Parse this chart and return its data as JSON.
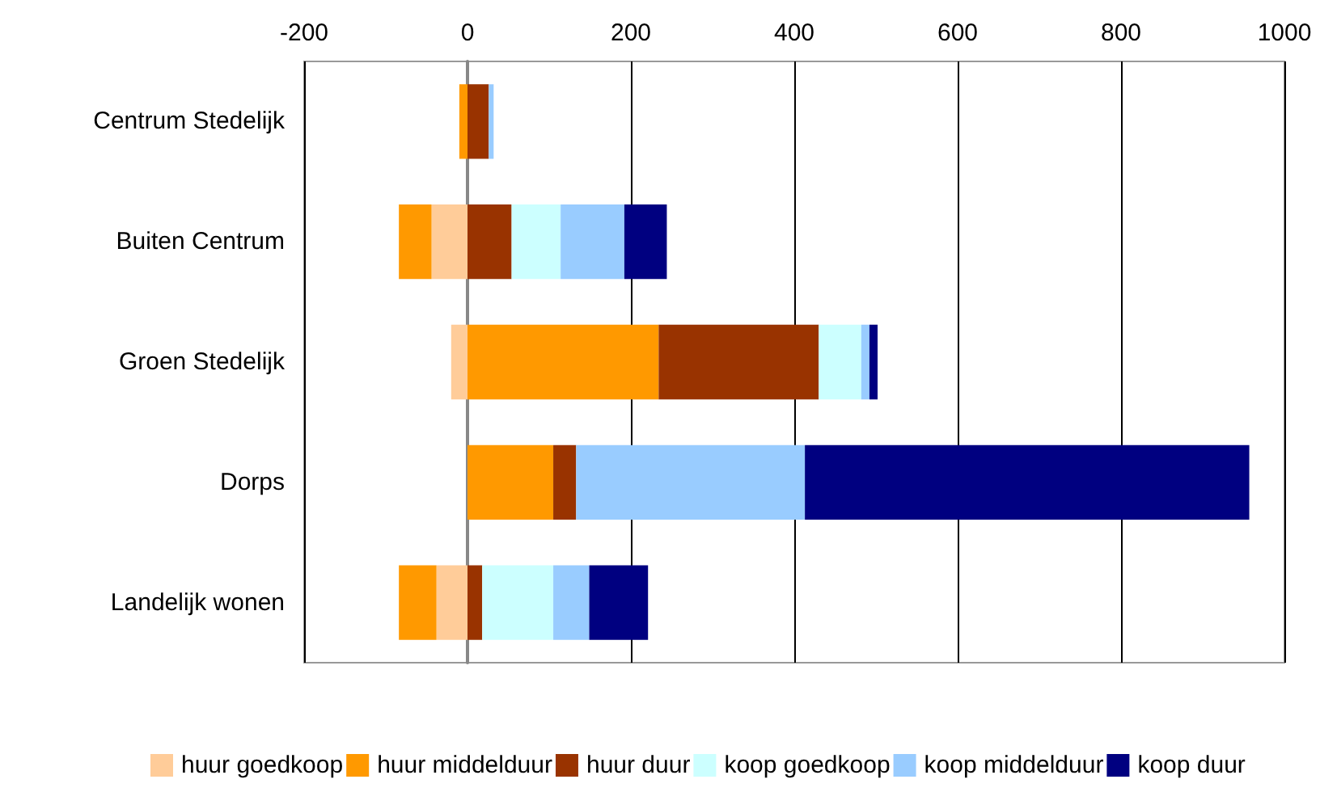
{
  "chart_data": {
    "type": "bar",
    "orientation": "horizontal",
    "stacked": true,
    "categories": [
      "Centrum Stedelijk",
      "Buiten Centrum",
      "Groen Stedelijk",
      "Dorps",
      "Landelijk wonen"
    ],
    "series": [
      {
        "name": "huur goedkoop",
        "color": "#ffcc99",
        "values": [
          0,
          -44,
          -20,
          0,
          -38
        ]
      },
      {
        "name": "huur middelduur",
        "color": "#ff9900",
        "values": [
          -10,
          -40,
          234,
          105,
          -46
        ]
      },
      {
        "name": "huur duur",
        "color": "#993300",
        "values": [
          26,
          54,
          196,
          28,
          18
        ]
      },
      {
        "name": "koop goedkoop",
        "color": "#ccffff",
        "values": [
          0,
          60,
          52,
          0,
          87
        ]
      },
      {
        "name": "koop middelduur",
        "color": "#99ccff",
        "values": [
          6,
          78,
          10,
          280,
          44
        ]
      },
      {
        "name": "koop duur",
        "color": "#000080",
        "values": [
          0,
          52,
          10,
          544,
          72
        ]
      }
    ],
    "xlim": [
      -200,
      1000
    ],
    "xticks": [
      -200,
      0,
      200,
      400,
      600,
      800,
      1000
    ],
    "grid": "x",
    "legend": "bottom"
  }
}
